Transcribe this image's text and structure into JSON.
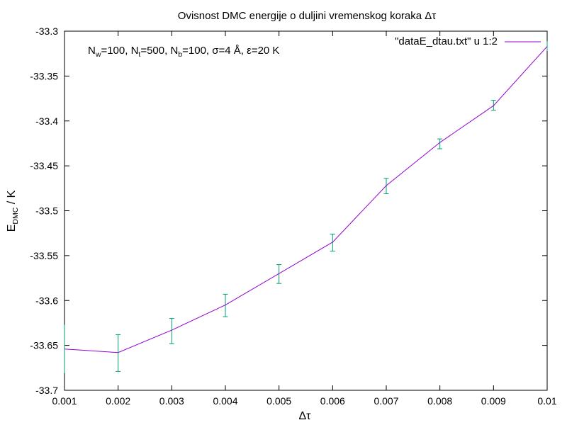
{
  "chart_data": {
    "type": "line",
    "title": "Ovisnost DMC energije o duljini vremenskog koraka Δτ",
    "xlabel": "Δτ",
    "ylabel": {
      "main": "E",
      "sub": "DMC",
      "suffix": " / K"
    },
    "xlim": [
      0.001,
      0.01
    ],
    "ylim": [
      -33.7,
      -33.3
    ],
    "xticks": [
      0.001,
      0.002,
      0.003,
      0.004,
      0.005,
      0.006,
      0.007,
      0.008,
      0.009,
      0.01
    ],
    "xtick_labels": [
      "0.001",
      "0.002",
      "0.003",
      "0.004",
      "0.005",
      "0.006",
      "0.007",
      "0.008",
      "0.009",
      "0.01"
    ],
    "yticks": [
      -33.3,
      -33.35,
      -33.4,
      -33.45,
      -33.5,
      -33.55,
      -33.6,
      -33.65,
      -33.7
    ],
    "ytick_labels": [
      "-33.3",
      "-33.35",
      "-33.4",
      "-33.45",
      "-33.5",
      "-33.55",
      "-33.6",
      "-33.65",
      "-33.7"
    ],
    "grid": false,
    "legend_position": "top-right",
    "series": [
      {
        "name": "\"dataE_dtau.txt\" u 1:2",
        "color": "#9400d3",
        "x": [
          0.001,
          0.002,
          0.003,
          0.004,
          0.005,
          0.006,
          0.007,
          0.008,
          0.009,
          0.01
        ],
        "values": [
          -33.654,
          -33.658,
          -33.633,
          -33.605,
          -33.57,
          -33.535,
          -33.472,
          -33.424,
          -33.383,
          -33.317
        ]
      }
    ],
    "errorbars": {
      "color": "#009e73",
      "x": [
        0.001,
        0.002,
        0.003,
        0.004,
        0.005,
        0.006,
        0.007,
        0.008,
        0.009,
        0.01
      ],
      "low": [
        -33.681,
        -33.679,
        -33.648,
        -33.618,
        -33.581,
        -33.545,
        -33.481,
        -33.431,
        -33.388,
        -33.322
      ],
      "high": [
        -33.627,
        -33.638,
        -33.62,
        -33.593,
        -33.56,
        -33.526,
        -33.464,
        -33.42,
        -33.377,
        -33.311
      ]
    },
    "annotation": {
      "parts": [
        {
          "text": "N",
          "sub": "w",
          "rest": "=100, "
        },
        {
          "text": "N",
          "sub": "t",
          "rest": "=500, "
        },
        {
          "text": "N",
          "sub": "b",
          "rest": "=100, σ=4 Å, ε=20 K"
        }
      ]
    }
  }
}
